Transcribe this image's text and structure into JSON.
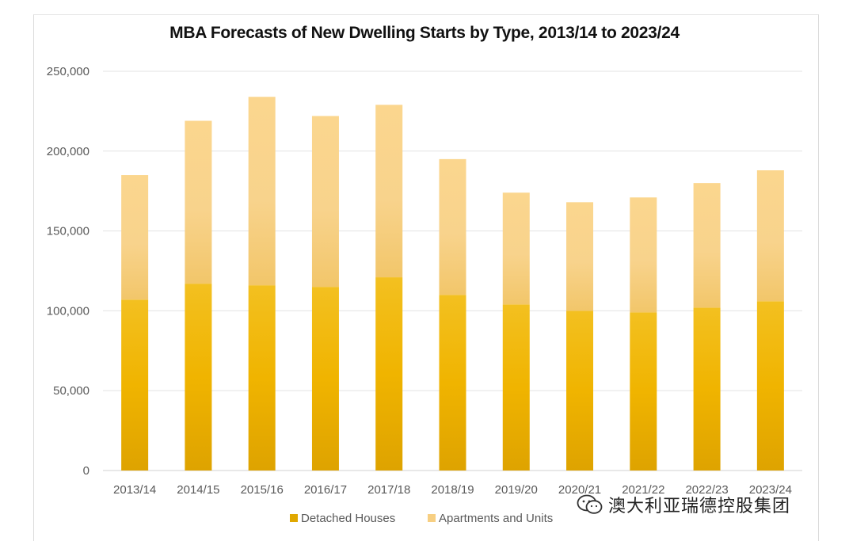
{
  "chart_data": {
    "type": "bar",
    "stacked": true,
    "title": "MBA Forecasts of New Dwelling Starts by Type, 2013/14 to 2023/24",
    "xlabel": "",
    "ylabel": "",
    "ylim": [
      0,
      250000
    ],
    "yticks": [
      "0",
      "50,000",
      "100,000",
      "150,000",
      "200,000",
      "250,000"
    ],
    "ytick_values": [
      0,
      50000,
      100000,
      150000,
      200000,
      250000
    ],
    "grid": true,
    "legend_position": "bottom",
    "categories": [
      "2013/14",
      "2014/15",
      "2015/16",
      "2016/17",
      "2017/18",
      "2018/19",
      "2019/20",
      "2020/21",
      "2021/22",
      "2022/23",
      "2023/24"
    ],
    "series": [
      {
        "name": "Detached Houses",
        "color": "#e6ad00",
        "values": [
          107000,
          117000,
          116000,
          115000,
          121000,
          110000,
          104000,
          100000,
          99000,
          102000,
          106000
        ]
      },
      {
        "name": "Apartments and Units",
        "color": "#f9d48a",
        "values": [
          78000,
          102000,
          118000,
          107000,
          108000,
          85000,
          70000,
          68000,
          72000,
          78000,
          82000
        ]
      }
    ]
  },
  "watermark": {
    "icon": "wechat-icon",
    "text": "澳大利亚瑞德控股集团"
  }
}
